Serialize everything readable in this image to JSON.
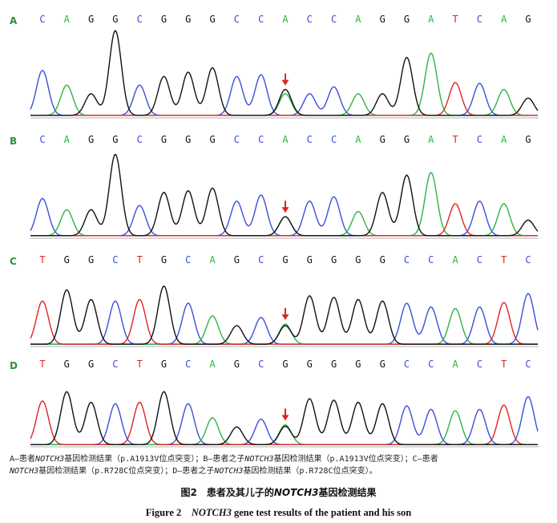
{
  "chart_data": {
    "type": "chromatogram",
    "colors": {
      "A": "#2fb344",
      "C": "#3b4fd9",
      "G": "#111111",
      "T": "#e02424"
    },
    "mutation_marker_color": "#e02424",
    "panels": [
      {
        "label": "A",
        "bases": [
          "C",
          "A",
          "G",
          "G",
          "C",
          "G",
          "G",
          "G",
          "C",
          "C",
          "A",
          "C",
          "C",
          "A",
          "G",
          "G",
          "A",
          "T",
          "C",
          "A",
          "G"
        ],
        "amplitudes": [
          0.52,
          0.35,
          0.25,
          0.98,
          0.35,
          0.45,
          0.5,
          0.55,
          0.45,
          0.47,
          0.25,
          0.25,
          0.33,
          0.25,
          0.25,
          0.67,
          0.72,
          0.38,
          0.37,
          0.3,
          0.2
        ],
        "secondary": {
          "10": {
            "base": "G",
            "amp": 0.3
          }
        },
        "mutation_index": 10
      },
      {
        "label": "B",
        "bases": [
          "C",
          "A",
          "G",
          "G",
          "C",
          "G",
          "G",
          "G",
          "C",
          "C",
          "A",
          "C",
          "C",
          "A",
          "G",
          "G",
          "A",
          "T",
          "C",
          "A",
          "G"
        ],
        "amplitudes": [
          0.43,
          0.3,
          0.3,
          0.94,
          0.35,
          0.5,
          0.52,
          0.55,
          0.4,
          0.47,
          0.22,
          0.4,
          0.45,
          0.28,
          0.5,
          0.7,
          0.73,
          0.37,
          0.4,
          0.37,
          0.18
        ],
        "secondary": {
          "10": {
            "base": "G",
            "amp": 0.22
          }
        },
        "mutation_index": 10
      },
      {
        "label": "C",
        "bases": [
          "T",
          "G",
          "G",
          "C",
          "T",
          "G",
          "C",
          "A",
          "G",
          "C",
          "G",
          "G",
          "G",
          "G",
          "G",
          "C",
          "C",
          "A",
          "C",
          "T",
          "C"
        ],
        "amplitudes": [
          0.58,
          0.73,
          0.6,
          0.58,
          0.6,
          0.78,
          0.55,
          0.38,
          0.25,
          0.36,
          0.25,
          0.65,
          0.63,
          0.6,
          0.58,
          0.55,
          0.5,
          0.48,
          0.5,
          0.56,
          0.68
        ],
        "secondary": {
          "10": {
            "base": "A",
            "amp": 0.27
          }
        },
        "mutation_index": 10
      },
      {
        "label": "D",
        "bases": [
          "T",
          "G",
          "G",
          "C",
          "T",
          "G",
          "C",
          "A",
          "G",
          "C",
          "G",
          "G",
          "G",
          "G",
          "G",
          "C",
          "C",
          "A",
          "C",
          "T",
          "C"
        ],
        "amplitudes": [
          0.62,
          0.75,
          0.6,
          0.58,
          0.6,
          0.75,
          0.58,
          0.38,
          0.25,
          0.36,
          0.26,
          0.65,
          0.63,
          0.6,
          0.58,
          0.55,
          0.5,
          0.48,
          0.5,
          0.56,
          0.68
        ],
        "secondary": {
          "10": {
            "base": "A",
            "amp": 0.28
          }
        },
        "mutation_index": 10
      }
    ]
  },
  "caption": {
    "note_line1_a": "A—患者",
    "gene": "NOTCH3",
    "note_line1_b": "基因检测结果（p.A1913V位点突变）；B—患者之子",
    "note_line1_c": "基因检测结果（p.A1913V位点突变）；C—患者",
    "note_line2_a": "基因检测结果（p.R728C位点突变）；D—患者之子",
    "note_line2_b": "基因检测结果（p.R728C位点突变）。",
    "title_cn_prefix": "图2　患者及其儿子的",
    "title_cn_suffix": "基因检测结果",
    "title_en_prefix": "Figure 2　",
    "title_en_suffix": " gene test results of the patient and his son"
  }
}
